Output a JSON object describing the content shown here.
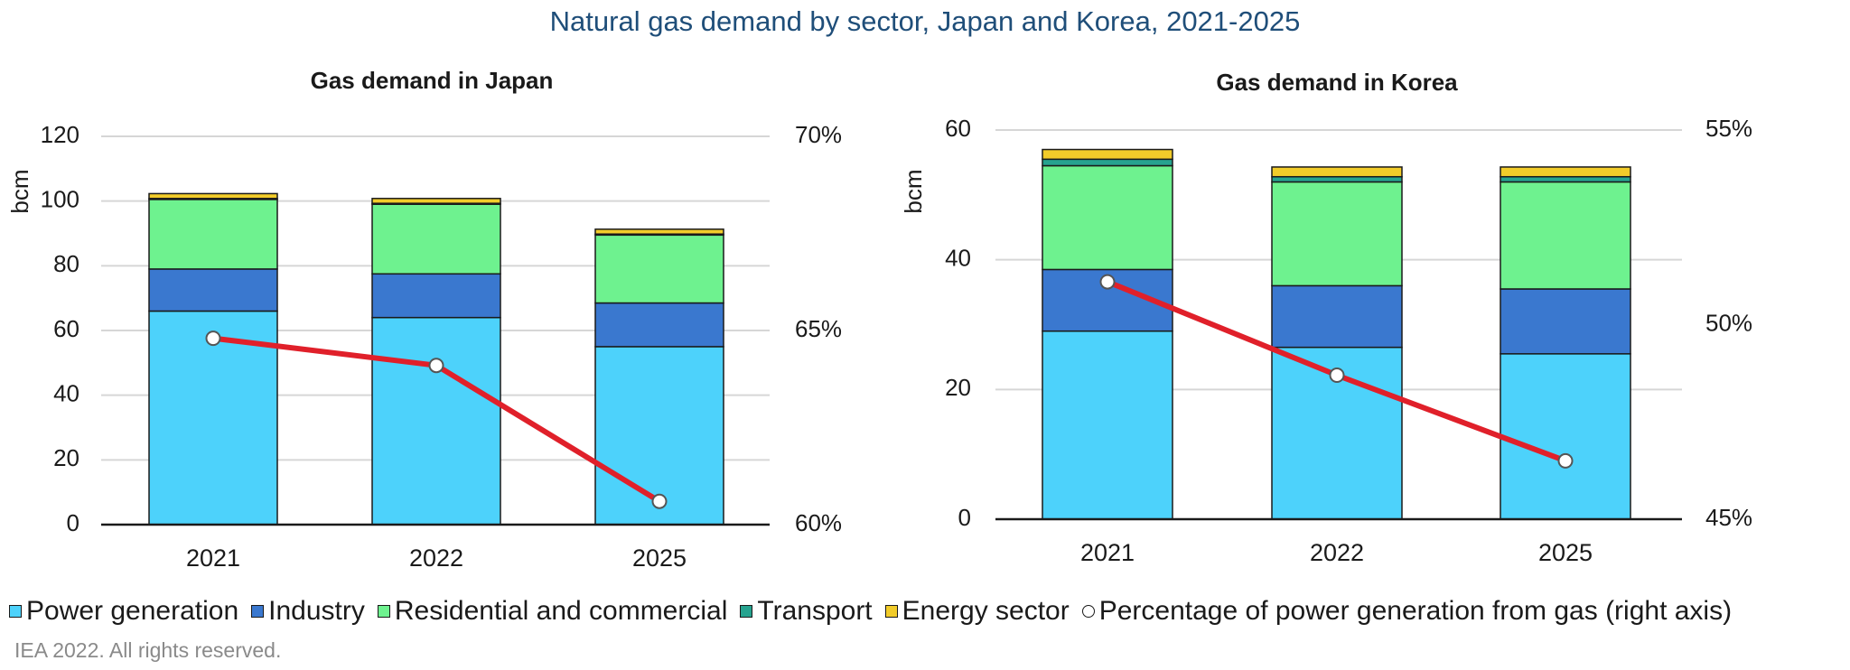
{
  "title": "Natural gas demand by sector, Japan and Korea, 2021-2025",
  "footnote": "IEA 2022. All rights reserved.",
  "colors": {
    "power": "#4dd2fb",
    "industry": "#3a78cf",
    "residential": "#6ef28f",
    "transport": "#26a38f",
    "energy": "#f2cc2a",
    "line": "#e0202a"
  },
  "legend": [
    {
      "key": "power",
      "label": "Power generation",
      "shape": "square"
    },
    {
      "key": "industry",
      "label": "Industry",
      "shape": "square"
    },
    {
      "key": "residential",
      "label": "Residential and commercial",
      "shape": "square"
    },
    {
      "key": "transport",
      "label": "Transport",
      "shape": "square"
    },
    {
      "key": "energy",
      "label": "Energy sector",
      "shape": "square"
    },
    {
      "key": "line",
      "label": "Percentage of power generation from gas (right axis)",
      "shape": "circle"
    }
  ],
  "chart_data": [
    {
      "type": "bar",
      "stacked": true,
      "title": "Gas demand in Japan",
      "ylabel": "bcm",
      "categories": [
        "2021",
        "2022",
        "2025"
      ],
      "ylim": [
        0,
        120
      ],
      "yticks": [
        "0",
        "20",
        "40",
        "60",
        "80",
        "100",
        "120"
      ],
      "y2lim": [
        60,
        70
      ],
      "y2ticks": [
        "60%",
        "65%",
        "70%"
      ],
      "grid": true,
      "series": [
        {
          "name": "Power generation",
          "key": "power",
          "values": [
            66,
            64,
            55
          ]
        },
        {
          "name": "Industry",
          "key": "industry",
          "values": [
            13,
            13.5,
            13.5
          ]
        },
        {
          "name": "Residential and commercial",
          "key": "residential",
          "values": [
            21.5,
            21.5,
            21
          ]
        },
        {
          "name": "Transport",
          "key": "transport",
          "values": [
            0.3,
            0.3,
            0.3
          ]
        },
        {
          "name": "Energy sector",
          "key": "energy",
          "values": [
            1.5,
            1.5,
            1.5
          ]
        }
      ],
      "line_series": {
        "name": "Percentage of power generation from gas (right axis)",
        "key": "line",
        "axis": "right",
        "values": [
          64.8,
          64.1,
          60.6
        ]
      }
    },
    {
      "type": "bar",
      "stacked": true,
      "title": "Gas demand in Korea",
      "ylabel": "bcm",
      "categories": [
        "2021",
        "2022",
        "2025"
      ],
      "ylim": [
        0,
        60
      ],
      "yticks": [
        "0",
        "20",
        "40",
        "60"
      ],
      "y2lim": [
        45,
        55
      ],
      "y2ticks": [
        "45%",
        "50%",
        "55%"
      ],
      "grid": true,
      "series": [
        {
          "name": "Power generation",
          "key": "power",
          "values": [
            29,
            26.5,
            25.5
          ]
        },
        {
          "name": "Industry",
          "key": "industry",
          "values": [
            9.5,
            9.5,
            10
          ]
        },
        {
          "name": "Residential and commercial",
          "key": "residential",
          "values": [
            16,
            16,
            16.5
          ]
        },
        {
          "name": "Transport",
          "key": "transport",
          "values": [
            1,
            0.8,
            0.8
          ]
        },
        {
          "name": "Energy sector",
          "key": "energy",
          "values": [
            1.5,
            1.5,
            1.5
          ]
        }
      ],
      "line_series": {
        "name": "Percentage of power generation from gas (right axis)",
        "key": "line",
        "axis": "right",
        "values": [
          51.1,
          48.7,
          46.5
        ]
      }
    }
  ]
}
